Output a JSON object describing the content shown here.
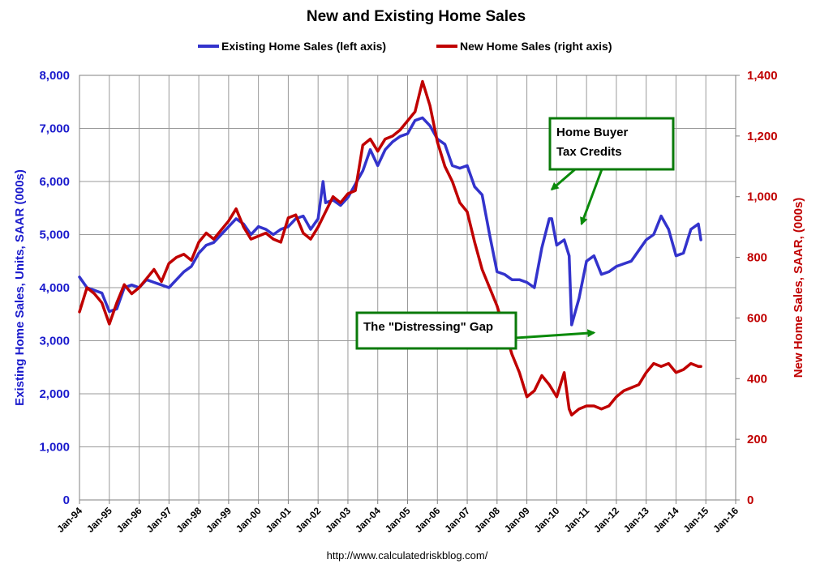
{
  "chart_data": {
    "type": "line",
    "title": "New and Existing Home Sales",
    "source": "http://www.calculatedriskblog.com/",
    "ylabel_left": "Existing Home Sales, Units, SAAR (000s)",
    "ylabel_right": "New Home Sales, SAAR, (000s)",
    "ylim_left": [
      0,
      8000
    ],
    "ylim_right": [
      0,
      1400
    ],
    "yticks_left": [
      "0",
      "1,000",
      "2,000",
      "3,000",
      "4,000",
      "5,000",
      "6,000",
      "7,000",
      "8,000"
    ],
    "yticks_right": [
      "0",
      "200",
      "400",
      "600",
      "800",
      "1,000",
      "1,200",
      "1,400"
    ],
    "x_start": "Jan-94",
    "x_end": "Jan-16",
    "xticks": [
      "Jan-94",
      "Jan-95",
      "Jan-96",
      "Jan-97",
      "Jan-98",
      "Jan-99",
      "Jan-00",
      "Jan-01",
      "Jan-02",
      "Jan-03",
      "Jan-04",
      "Jan-05",
      "Jan-06",
      "Jan-07",
      "Jan-08",
      "Jan-09",
      "Jan-10",
      "Jan-11",
      "Jan-12",
      "Jan-13",
      "Jan-14",
      "Jan-15",
      "Jan-16"
    ],
    "grid": true,
    "legend_position": "top",
    "series": [
      {
        "name": "Existing Home Sales (left axis)",
        "axis": "left",
        "color": "#3333cc",
        "points": [
          [
            "1994-01",
            4200
          ],
          [
            "1994-04",
            4000
          ],
          [
            "1994-07",
            3950
          ],
          [
            "1994-10",
            3900
          ],
          [
            "1995-01",
            3550
          ],
          [
            "1995-04",
            3600
          ],
          [
            "1995-07",
            4000
          ],
          [
            "1995-10",
            4050
          ],
          [
            "1996-01",
            4000
          ],
          [
            "1996-04",
            4150
          ],
          [
            "1996-07",
            4100
          ],
          [
            "1996-10",
            4050
          ],
          [
            "1997-01",
            4000
          ],
          [
            "1997-04",
            4150
          ],
          [
            "1997-07",
            4300
          ],
          [
            "1997-10",
            4400
          ],
          [
            "1998-01",
            4650
          ],
          [
            "1998-04",
            4800
          ],
          [
            "1998-07",
            4850
          ],
          [
            "1998-10",
            5000
          ],
          [
            "1999-01",
            5150
          ],
          [
            "1999-04",
            5300
          ],
          [
            "1999-07",
            5200
          ],
          [
            "1999-10",
            5000
          ],
          [
            "2000-01",
            5150
          ],
          [
            "2000-04",
            5100
          ],
          [
            "2000-07",
            5000
          ],
          [
            "2000-10",
            5100
          ],
          [
            "2001-01",
            5150
          ],
          [
            "2001-04",
            5300
          ],
          [
            "2001-07",
            5350
          ],
          [
            "2001-10",
            5100
          ],
          [
            "2002-01",
            5300
          ],
          [
            "2002-03",
            6000
          ],
          [
            "2002-04",
            5600
          ],
          [
            "2002-07",
            5650
          ],
          [
            "2002-10",
            5550
          ],
          [
            "2003-01",
            5700
          ],
          [
            "2003-04",
            5950
          ],
          [
            "2003-07",
            6200
          ],
          [
            "2003-10",
            6600
          ],
          [
            "2004-01",
            6300
          ],
          [
            "2004-04",
            6600
          ],
          [
            "2004-07",
            6750
          ],
          [
            "2004-10",
            6850
          ],
          [
            "2005-01",
            6900
          ],
          [
            "2005-04",
            7150
          ],
          [
            "2005-07",
            7200
          ],
          [
            "2005-10",
            7050
          ],
          [
            "2006-01",
            6800
          ],
          [
            "2006-04",
            6700
          ],
          [
            "2006-07",
            6300
          ],
          [
            "2006-10",
            6250
          ],
          [
            "2007-01",
            6300
          ],
          [
            "2007-04",
            5900
          ],
          [
            "2007-07",
            5750
          ],
          [
            "2007-10",
            5000
          ],
          [
            "2008-01",
            4300
          ],
          [
            "2008-04",
            4250
          ],
          [
            "2008-07",
            4150
          ],
          [
            "2008-10",
            4150
          ],
          [
            "2009-01",
            4100
          ],
          [
            "2009-04",
            4000
          ],
          [
            "2009-07",
            4750
          ],
          [
            "2009-10",
            5300
          ],
          [
            "2009-11",
            5300
          ],
          [
            "2010-01",
            4800
          ],
          [
            "2010-04",
            4900
          ],
          [
            "2010-06",
            4600
          ],
          [
            "2010-07",
            3300
          ],
          [
            "2010-10",
            3800
          ],
          [
            "2011-01",
            4500
          ],
          [
            "2011-04",
            4600
          ],
          [
            "2011-07",
            4250
          ],
          [
            "2011-10",
            4300
          ],
          [
            "2012-01",
            4400
          ],
          [
            "2012-04",
            4450
          ],
          [
            "2012-07",
            4500
          ],
          [
            "2012-10",
            4700
          ],
          [
            "2013-01",
            4900
          ],
          [
            "2013-04",
            5000
          ],
          [
            "2013-07",
            5350
          ],
          [
            "2013-10",
            5100
          ],
          [
            "2014-01",
            4600
          ],
          [
            "2014-04",
            4650
          ],
          [
            "2014-07",
            5100
          ],
          [
            "2014-10",
            5200
          ],
          [
            "2014-11",
            4900
          ]
        ]
      },
      {
        "name": "New Home Sales (right axis)",
        "axis": "right",
        "color": "#c00000",
        "points": [
          [
            "1994-01",
            620
          ],
          [
            "1994-04",
            700
          ],
          [
            "1994-07",
            680
          ],
          [
            "1994-10",
            650
          ],
          [
            "1995-01",
            580
          ],
          [
            "1995-04",
            650
          ],
          [
            "1995-07",
            710
          ],
          [
            "1995-10",
            680
          ],
          [
            "1996-01",
            700
          ],
          [
            "1996-04",
            730
          ],
          [
            "1996-07",
            760
          ],
          [
            "1996-10",
            720
          ],
          [
            "1997-01",
            780
          ],
          [
            "1997-04",
            800
          ],
          [
            "1997-07",
            810
          ],
          [
            "1997-10",
            790
          ],
          [
            "1998-01",
            850
          ],
          [
            "1998-04",
            880
          ],
          [
            "1998-07",
            860
          ],
          [
            "1998-10",
            890
          ],
          [
            "1999-01",
            920
          ],
          [
            "1999-04",
            960
          ],
          [
            "1999-07",
            900
          ],
          [
            "1999-10",
            860
          ],
          [
            "2000-01",
            870
          ],
          [
            "2000-04",
            880
          ],
          [
            "2000-07",
            860
          ],
          [
            "2000-10",
            850
          ],
          [
            "2001-01",
            930
          ],
          [
            "2001-04",
            940
          ],
          [
            "2001-07",
            880
          ],
          [
            "2001-10",
            860
          ],
          [
            "2002-01",
            900
          ],
          [
            "2002-04",
            950
          ],
          [
            "2002-07",
            1000
          ],
          [
            "2002-10",
            980
          ],
          [
            "2003-01",
            1010
          ],
          [
            "2003-04",
            1020
          ],
          [
            "2003-07",
            1170
          ],
          [
            "2003-10",
            1190
          ],
          [
            "2004-01",
            1150
          ],
          [
            "2004-04",
            1190
          ],
          [
            "2004-07",
            1200
          ],
          [
            "2004-10",
            1220
          ],
          [
            "2005-01",
            1250
          ],
          [
            "2005-04",
            1280
          ],
          [
            "2005-07",
            1380
          ],
          [
            "2005-10",
            1300
          ],
          [
            "2006-01",
            1180
          ],
          [
            "2006-04",
            1100
          ],
          [
            "2006-07",
            1050
          ],
          [
            "2006-10",
            980
          ],
          [
            "2007-01",
            950
          ],
          [
            "2007-04",
            850
          ],
          [
            "2007-07",
            760
          ],
          [
            "2007-10",
            700
          ],
          [
            "2008-01",
            640
          ],
          [
            "2008-04",
            560
          ],
          [
            "2008-07",
            480
          ],
          [
            "2008-10",
            420
          ],
          [
            "2009-01",
            340
          ],
          [
            "2009-04",
            360
          ],
          [
            "2009-07",
            410
          ],
          [
            "2009-10",
            380
          ],
          [
            "2010-01",
            340
          ],
          [
            "2010-04",
            420
          ],
          [
            "2010-06",
            300
          ],
          [
            "2010-07",
            280
          ],
          [
            "2010-10",
            300
          ],
          [
            "2011-01",
            310
          ],
          [
            "2011-04",
            310
          ],
          [
            "2011-07",
            300
          ],
          [
            "2011-10",
            310
          ],
          [
            "2012-01",
            340
          ],
          [
            "2012-04",
            360
          ],
          [
            "2012-07",
            370
          ],
          [
            "2012-10",
            380
          ],
          [
            "2013-01",
            420
          ],
          [
            "2013-04",
            450
          ],
          [
            "2013-07",
            440
          ],
          [
            "2013-10",
            450
          ],
          [
            "2014-01",
            420
          ],
          [
            "2014-04",
            430
          ],
          [
            "2014-07",
            450
          ],
          [
            "2014-10",
            440
          ],
          [
            "2014-11",
            440
          ]
        ]
      }
    ],
    "annotations": [
      {
        "text_lines": [
          "Home Buyer",
          "Tax Credits"
        ],
        "arrow_targets": [
          [
            "2009-11",
            5850
          ],
          [
            "2010-11",
            5200
          ]
        ]
      },
      {
        "text_lines": [
          "The \"Distressing\" Gap"
        ],
        "arrow_targets": [
          [
            "2011-04",
            3150
          ]
        ]
      }
    ]
  }
}
